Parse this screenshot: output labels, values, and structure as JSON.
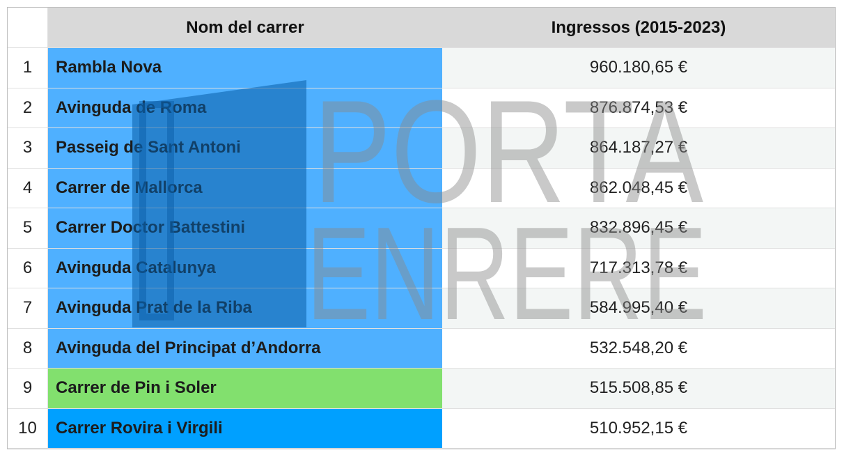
{
  "table": {
    "header": [
      "Nom del carrer",
      "Ingressos (2015-2023)"
    ],
    "rows": [
      [
        "1",
        "Rambla Nova",
        "960.180,65 €"
      ],
      [
        "2",
        "Avinguda de Roma",
        "876.874,53 €"
      ],
      [
        "3",
        "Passeig de Sant Antoni",
        "864.187,27 €"
      ],
      [
        "4",
        "Carrer de Mallorca",
        "862.048,45 €"
      ],
      [
        "5",
        "Carrer Doctor Battestini",
        "832.896,45 €"
      ],
      [
        "6",
        "Avinguda Catalunya",
        "717.313,78 €"
      ],
      [
        "7",
        "Avinguda Prat de la Riba",
        "584.995,40 €"
      ],
      [
        "8",
        "Avinguda del Principat d’Andorra",
        "532.548,20 €"
      ],
      [
        "9",
        "Carrer de Pin i Soler",
        "515.508,85 €"
      ],
      [
        "10",
        "Carrer Rovira i Virgili",
        "510.952,15 €"
      ]
    ]
  },
  "watermark": {
    "line1": "PORTA",
    "line2": "ENRERE"
  }
}
